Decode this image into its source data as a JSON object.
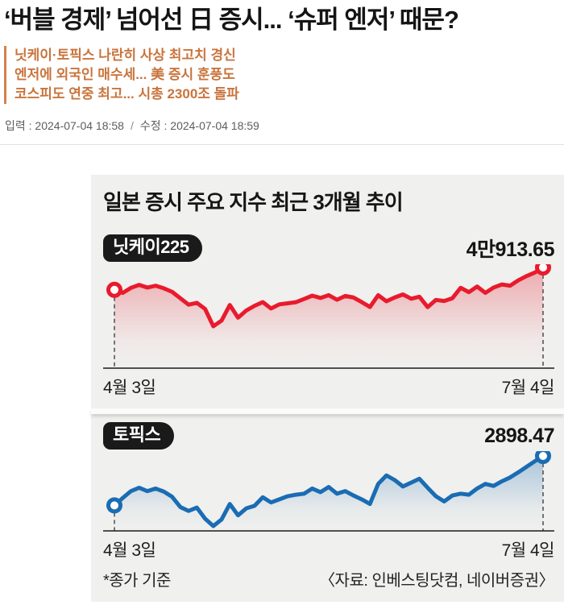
{
  "article": {
    "headline": "‘버블 경제’ 넘어선 日 증시... ‘슈퍼 엔저’ 때문?",
    "subheadline": [
      "닛케이·토픽스 나란히 사상 최고치 경신",
      "엔저에 외국인 매수세... 美 증시 훈풍도",
      "코스피도 연중 최고... 시총 2300조 돌파"
    ],
    "subheadline_color": "#c9743c",
    "accent_bar_color": "#d5824a",
    "meta": {
      "posted": "입력 : 2024-07-04 18:58",
      "separator": "/",
      "modified": "수정 : 2024-07-04 18:59"
    }
  },
  "infographic": {
    "title": "일본 증시 주요 지수 최근 3개월 추이",
    "footnote": "*종가 기준",
    "source": "〈자료: 인베스팅닷컴, 네이버증권〉",
    "background_color": "#f0f0ee"
  },
  "chart_data": [
    {
      "type": "line",
      "name": "닛케이225",
      "color": "#e81b2d",
      "end_label": "4만913.65",
      "end_value": 40913.65,
      "x_range": [
        "4월 3일",
        "7월 4일"
      ],
      "x_start_date": "2024-04-03",
      "x_end_date": "2024-07-04",
      "ylim": [
        37000,
        41000
      ],
      "legend": "none",
      "grid": false,
      "values": [
        39451,
        39250,
        39580,
        39774,
        39600,
        39720,
        39550,
        39320,
        38900,
        38480,
        38600,
        38200,
        37068,
        37440,
        38460,
        37630,
        38100,
        38405,
        38650,
        38230,
        38500,
        38570,
        38640,
        38850,
        39070,
        38920,
        39100,
        38800,
        39050,
        38950,
        38650,
        38330,
        39100,
        38700,
        38950,
        39150,
        38870,
        39000,
        38320,
        38790,
        38720,
        38900,
        39583,
        39300,
        39667,
        39250,
        39600,
        39800,
        39720,
        40074,
        40350,
        40580,
        40913.65
      ]
    },
    {
      "type": "line",
      "name": "토픽스",
      "color": "#1a6cb3",
      "end_label": "2898.47",
      "end_value": 2898.47,
      "x_range": [
        "4월 3일",
        "7월 4일"
      ],
      "x_start_date": "2024-04-03",
      "x_end_date": "2024-07-04",
      "ylim": [
        2600,
        2900
      ],
      "legend": "none",
      "grid": false,
      "values": [
        2706.51,
        2735,
        2762,
        2775,
        2762,
        2772,
        2760,
        2740,
        2700,
        2685,
        2698,
        2655,
        2626.32,
        2652,
        2712,
        2668,
        2695,
        2705,
        2738,
        2718,
        2730,
        2742,
        2748,
        2752,
        2772,
        2758,
        2778,
        2752,
        2762,
        2745,
        2730,
        2712,
        2790,
        2823,
        2805,
        2780,
        2795,
        2810,
        2775,
        2742,
        2722,
        2745,
        2752,
        2748,
        2772,
        2790,
        2782,
        2800,
        2815,
        2835,
        2856.59,
        2878,
        2898.47
      ]
    }
  ]
}
